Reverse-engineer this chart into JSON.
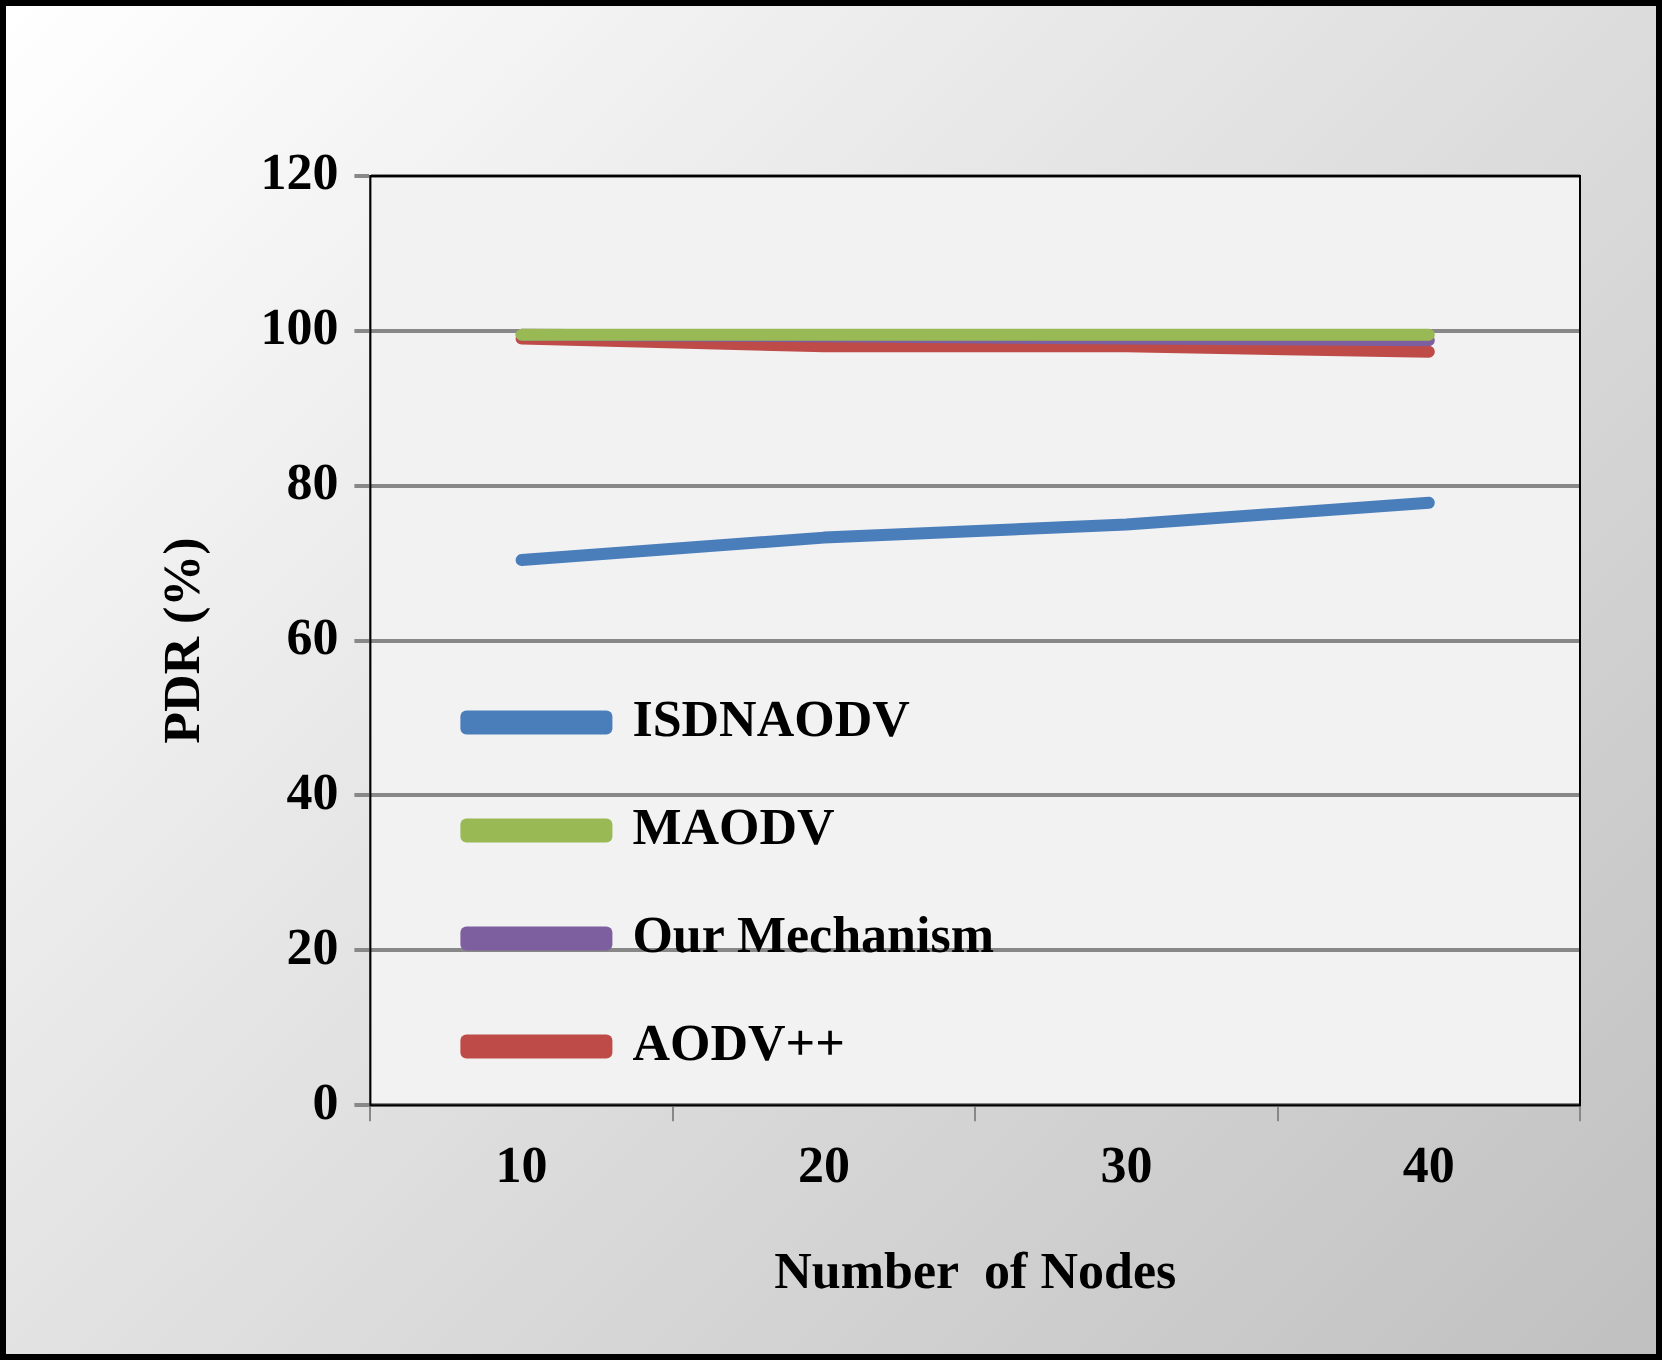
{
  "chart_data": {
    "type": "line",
    "xlabel": "Number  of Nodes",
    "ylabel": "PDR (%)",
    "categories": [
      "10",
      "20",
      "30",
      "40"
    ],
    "series": [
      {
        "name": "ISDNAODV",
        "color": "#4a7ebb",
        "values": [
          70.4,
          73.3,
          75,
          77.8
        ]
      },
      {
        "name": "MAODV",
        "color": "#98b954",
        "values": [
          99.5,
          99.5,
          99.5,
          99.5
        ]
      },
      {
        "name": "Our Mechanism",
        "color": "#7d5fa0",
        "values": [
          99.5,
          99.3,
          99,
          98.8
        ]
      },
      {
        "name": "AODV++",
        "color": "#be4b48",
        "values": [
          99,
          98,
          98,
          97.3
        ]
      }
    ],
    "ylim": [
      0,
      120
    ],
    "yticks": [
      0,
      20,
      40,
      60,
      80,
      100,
      120
    ],
    "grid": "y",
    "legend": "left",
    "marker": "none",
    "line_style": "solid"
  }
}
